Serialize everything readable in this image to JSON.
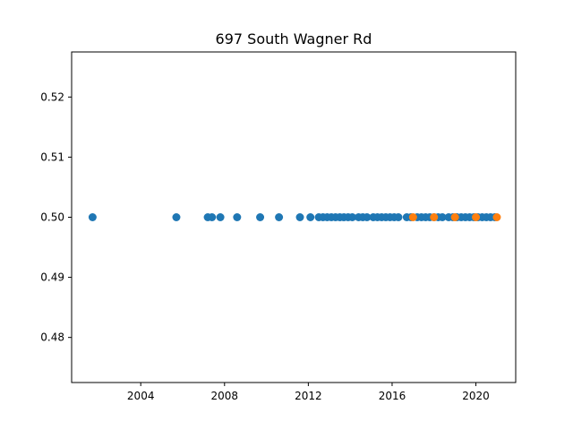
{
  "chart_data": {
    "type": "scatter",
    "title": "697 South Wagner Rd",
    "xlabel": "",
    "ylabel": "",
    "xlim": [
      2000.7,
      2021.9
    ],
    "ylim": [
      0.4725,
      0.5275
    ],
    "xticks": [
      2004,
      2008,
      2012,
      2016,
      2020
    ],
    "xtick_labels": [
      "2004",
      "2008",
      "2012",
      "2016",
      "2020"
    ],
    "yticks": [
      0.48,
      0.49,
      0.5,
      0.51,
      0.52
    ],
    "ytick_labels": [
      "0.48",
      "0.49",
      "0.50",
      "0.51",
      "0.52"
    ],
    "grid": false,
    "legend": "none",
    "series": [
      {
        "color": "#1f77b4",
        "x": [
          2001.7,
          2005.7,
          2007.2,
          2007.4,
          2007.8,
          2008.6,
          2009.7,
          2010.6,
          2011.6,
          2012.1,
          2012.5,
          2012.7,
          2012.9,
          2013.1,
          2013.3,
          2013.5,
          2013.7,
          2013.9,
          2014.1,
          2014.4,
          2014.6,
          2014.8,
          2015.1,
          2015.3,
          2015.5,
          2015.7,
          2015.9,
          2016.1,
          2016.3,
          2016.7,
          2016.9,
          2017.2,
          2017.4,
          2017.6,
          2017.8,
          2018.0,
          2018.2,
          2018.4,
          2018.7,
          2018.9,
          2019.1,
          2019.3,
          2019.5,
          2019.7,
          2019.9,
          2020.1,
          2020.3,
          2020.5,
          2020.7,
          2020.9
        ],
        "y": [
          0.5,
          0.5,
          0.5,
          0.5,
          0.5,
          0.5,
          0.5,
          0.5,
          0.5,
          0.5,
          0.5,
          0.5,
          0.5,
          0.5,
          0.5,
          0.5,
          0.5,
          0.5,
          0.5,
          0.5,
          0.5,
          0.5,
          0.5,
          0.5,
          0.5,
          0.5,
          0.5,
          0.5,
          0.5,
          0.5,
          0.5,
          0.5,
          0.5,
          0.5,
          0.5,
          0.5,
          0.5,
          0.5,
          0.5,
          0.5,
          0.5,
          0.5,
          0.5,
          0.5,
          0.5,
          0.5,
          0.5,
          0.5,
          0.5,
          0.5
        ]
      },
      {
        "color": "#ff7f0e",
        "x": [
          2017.0,
          2018.0,
          2019.0,
          2020.0,
          2021.0
        ],
        "y": [
          0.5,
          0.5,
          0.5,
          0.5,
          0.5
        ]
      }
    ]
  }
}
